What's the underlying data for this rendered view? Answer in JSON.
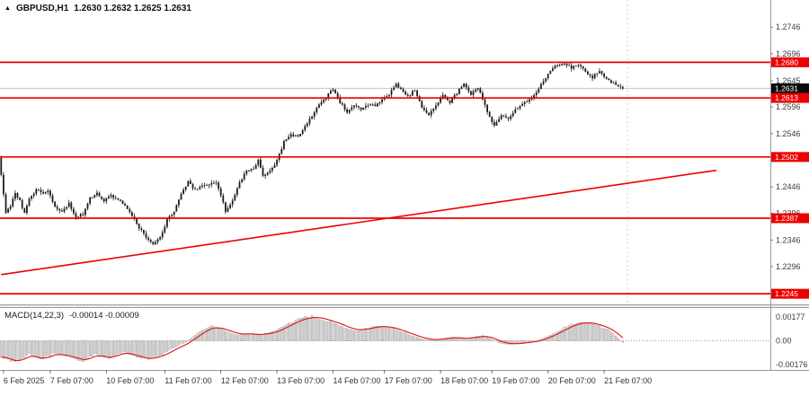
{
  "header": {
    "symbol_period": "GBPUSD,H1",
    "ohlc": "1.2630 1.2632 1.2625 1.2631"
  },
  "macd_panel": {
    "label": "MACD(14,22,3)",
    "values": "-0.00014 -0.00009",
    "axis_labels": [
      {
        "text": "0.00177",
        "value": 0.00177
      },
      {
        "text": "0.00",
        "value": 0
      },
      {
        "text": "-0.00176",
        "value": -0.00176
      }
    ]
  },
  "price_axis": {
    "ticks": [
      {
        "text": "1.2746",
        "value": 1.2746
      },
      {
        "text": "1.2696",
        "value": 1.2696
      },
      {
        "text": "1.2645",
        "value": 1.2645
      },
      {
        "text": "1.2596",
        "value": 1.2596
      },
      {
        "text": "1.2546",
        "value": 1.2546
      },
      {
        "text": "1.2446",
        "value": 1.2446
      },
      {
        "text": "1.2396",
        "value": 1.2396
      },
      {
        "text": "1.2346",
        "value": 1.2346
      },
      {
        "text": "1.2296",
        "value": 1.2296
      }
    ],
    "badges": [
      {
        "text": "1.2680",
        "value": 1.268,
        "type": "level"
      },
      {
        "text": "1.2631",
        "value": 1.2631,
        "type": "current"
      },
      {
        "text": "1.2613",
        "value": 1.2613,
        "type": "level"
      },
      {
        "text": "1.2502",
        "value": 1.2502,
        "type": "level"
      },
      {
        "text": "1.2387",
        "value": 1.2387,
        "type": "level"
      },
      {
        "text": "1.2245",
        "value": 1.2245,
        "type": "level"
      }
    ]
  },
  "time_axis": {
    "labels": [
      {
        "text": "6 Feb 2025",
        "idx": 1
      },
      {
        "text": "7 Feb 07:00",
        "idx": 21
      },
      {
        "text": "10 Feb 07:00",
        "idx": 45
      },
      {
        "text": "11 Feb 07:00",
        "idx": 70
      },
      {
        "text": "12 Feb 07:00",
        "idx": 94
      },
      {
        "text": "13 Feb 07:00",
        "idx": 118
      },
      {
        "text": "14 Feb 07:00",
        "idx": 142
      },
      {
        "text": "17 Feb 07:00",
        "idx": 164
      },
      {
        "text": "18 Feb 07:00",
        "idx": 188
      },
      {
        "text": "19 Feb 07:00",
        "idx": 210
      },
      {
        "text": "20 Feb 07:00",
        "idx": 234
      },
      {
        "text": "21 Feb 07:00",
        "idx": 258
      }
    ]
  },
  "chart_data": {
    "type": "candlestick+macd",
    "title": "GBPUSD,H1",
    "symbol": "GBPUSD",
    "timeframe": "H1",
    "current_bar": {
      "open": 1.263,
      "high": 1.2632,
      "low": 1.2625,
      "close": 1.2631
    },
    "ylim": [
      1.2225,
      1.2797
    ],
    "candle_count": 267,
    "price_path": [
      [
        0,
        1.25
      ],
      [
        1,
        1.247
      ],
      [
        2,
        1.243
      ],
      [
        3,
        1.2395
      ],
      [
        5,
        1.241
      ],
      [
        7,
        1.2435
      ],
      [
        9,
        1.242
      ],
      [
        11,
        1.2395
      ],
      [
        13,
        1.2425
      ],
      [
        16,
        1.244
      ],
      [
        19,
        1.2435
      ],
      [
        21,
        1.244
      ],
      [
        24,
        1.241
      ],
      [
        27,
        1.24
      ],
      [
        30,
        1.2415
      ],
      [
        33,
        1.2388
      ],
      [
        36,
        1.2395
      ],
      [
        39,
        1.2425
      ],
      [
        42,
        1.2435
      ],
      [
        45,
        1.242
      ],
      [
        48,
        1.243
      ],
      [
        51,
        1.2422
      ],
      [
        54,
        1.241
      ],
      [
        57,
        1.239
      ],
      [
        60,
        1.237
      ],
      [
        63,
        1.2352
      ],
      [
        66,
        1.2338
      ],
      [
        68,
        1.2345
      ],
      [
        70,
        1.236
      ],
      [
        72,
        1.2385
      ],
      [
        75,
        1.24
      ],
      [
        78,
        1.2432
      ],
      [
        81,
        1.2455
      ],
      [
        84,
        1.244
      ],
      [
        87,
        1.2448
      ],
      [
        90,
        1.245
      ],
      [
        93,
        1.2455
      ],
      [
        95,
        1.243
      ],
      [
        97,
        1.24
      ],
      [
        100,
        1.242
      ],
      [
        103,
        1.2455
      ],
      [
        106,
        1.2475
      ],
      [
        109,
        1.248
      ],
      [
        111,
        1.2495
      ],
      [
        113,
        1.2465
      ],
      [
        116,
        1.2475
      ],
      [
        119,
        1.2495
      ],
      [
        122,
        1.253
      ],
      [
        125,
        1.2545
      ],
      [
        128,
        1.254
      ],
      [
        131,
        1.256
      ],
      [
        134,
        1.258
      ],
      [
        137,
        1.26
      ],
      [
        140,
        1.2615
      ],
      [
        143,
        1.263
      ],
      [
        146,
        1.2605
      ],
      [
        149,
        1.2585
      ],
      [
        152,
        1.26
      ],
      [
        155,
        1.259
      ],
      [
        158,
        1.26
      ],
      [
        161,
        1.2598
      ],
      [
        164,
        1.2608
      ],
      [
        167,
        1.262
      ],
      [
        170,
        1.2638
      ],
      [
        172,
        1.263
      ],
      [
        175,
        1.2615
      ],
      [
        178,
        1.2628
      ],
      [
        181,
        1.2595
      ],
      [
        184,
        1.258
      ],
      [
        187,
        1.26
      ],
      [
        190,
        1.2618
      ],
      [
        193,
        1.2605
      ],
      [
        196,
        1.2622
      ],
      [
        199,
        1.264
      ],
      [
        202,
        1.262
      ],
      [
        205,
        1.2633
      ],
      [
        207,
        1.2612
      ],
      [
        209,
        1.2585
      ],
      [
        212,
        1.2562
      ],
      [
        215,
        1.258
      ],
      [
        218,
        1.2572
      ],
      [
        221,
        1.259
      ],
      [
        224,
        1.2602
      ],
      [
        227,
        1.261
      ],
      [
        230,
        1.2622
      ],
      [
        233,
        1.2645
      ],
      [
        236,
        1.2665
      ],
      [
        239,
        1.2675
      ],
      [
        242,
        1.2678
      ],
      [
        245,
        1.267
      ],
      [
        248,
        1.2676
      ],
      [
        251,
        1.2662
      ],
      [
        254,
        1.2652
      ],
      [
        257,
        1.2663
      ],
      [
        260,
        1.265
      ],
      [
        263,
        1.264
      ],
      [
        266,
        1.2631
      ]
    ],
    "levels": [
      1.268,
      1.2613,
      1.2502,
      1.2387,
      1.2245
    ],
    "current_price": 1.2631,
    "trendline": {
      "x1_idx": 0,
      "price1": 1.2281,
      "x2_idx": 306,
      "price2": 1.2477
    },
    "shift_line_idx": 268,
    "macd": {
      "settings": "14,22,3",
      "last_values": [
        -0.00014,
        -9e-05
      ],
      "ylim": [
        -0.0021,
        0.00244
      ],
      "path": [
        [
          0,
          -0.0012
        ],
        [
          6,
          -0.0016
        ],
        [
          12,
          -0.001
        ],
        [
          17,
          -0.0014
        ],
        [
          23,
          -0.0009
        ],
        [
          29,
          -0.0012
        ],
        [
          35,
          -0.0015
        ],
        [
          40,
          -0.001
        ],
        [
          46,
          -0.0013
        ],
        [
          52,
          -0.0008
        ],
        [
          58,
          -0.0012
        ],
        [
          63,
          -0.0014
        ],
        [
          69,
          -0.001
        ],
        [
          75,
          -0.0004
        ],
        [
          79,
          -0.0001
        ],
        [
          83,
          0.00043
        ],
        [
          87,
          0.0009
        ],
        [
          90,
          0.0011
        ],
        [
          94,
          0.0009
        ],
        [
          98,
          0.0006
        ],
        [
          102,
          0.00043
        ],
        [
          106,
          0.00054
        ],
        [
          110,
          0.00043
        ],
        [
          113,
          0.00054
        ],
        [
          117,
          0.0007
        ],
        [
          121,
          0.00107
        ],
        [
          125,
          0.00145
        ],
        [
          129,
          0.00171
        ],
        [
          133,
          0.0018
        ],
        [
          137,
          0.00166
        ],
        [
          140,
          0.00145
        ],
        [
          144,
          0.00123
        ],
        [
          148,
          0.0009
        ],
        [
          152,
          0.00075
        ],
        [
          156,
          0.0009
        ],
        [
          160,
          0.00107
        ],
        [
          163,
          0.0011
        ],
        [
          167,
          0.00096
        ],
        [
          171,
          0.0007
        ],
        [
          175,
          0.00043
        ],
        [
          179,
          0.0002
        ],
        [
          183,
          5e-05
        ],
        [
          187,
          0.0001
        ],
        [
          190,
          0.0002
        ],
        [
          194,
          0.00027
        ],
        [
          198,
          0.00016
        ],
        [
          202,
          0.00027
        ],
        [
          206,
          0.00038
        ],
        [
          210,
          0.00016
        ],
        [
          213,
          -0.00016
        ],
        [
          217,
          -0.00027
        ],
        [
          221,
          -0.0002
        ],
        [
          225,
          -0.0001
        ],
        [
          229,
          0.0
        ],
        [
          233,
          0.00027
        ],
        [
          237,
          0.0006
        ],
        [
          240,
          0.0009
        ],
        [
          244,
          0.00123
        ],
        [
          248,
          0.0014
        ],
        [
          252,
          0.00134
        ],
        [
          256,
          0.0011
        ],
        [
          260,
          0.0008
        ],
        [
          263,
          0.00038
        ],
        [
          266,
          -0.00014
        ]
      ]
    }
  },
  "colors": {
    "level": "#ee0000",
    "trend": "#ee0000",
    "candle": "#1c1c1c",
    "badge_red": "#ee0000",
    "badge_current_bg": "#0a0a0a",
    "badge_text": "#ffffff",
    "macd_fill": "#d6d6d6",
    "macd_outline": "#8e8e8e",
    "macd_signal": "#e01010",
    "current_price_line": "#c4c4c4",
    "axis_text": "#3d3d3d",
    "separator": "#9a9a9a"
  }
}
